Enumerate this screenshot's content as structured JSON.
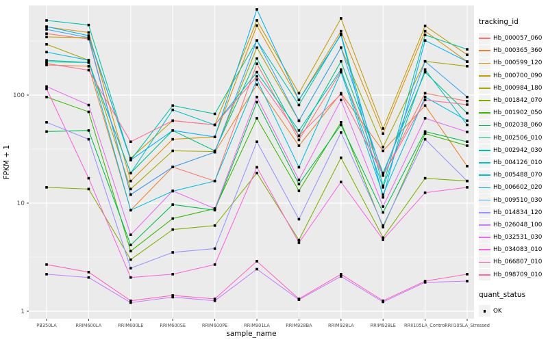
{
  "chart_data": {
    "type": "line",
    "title": "",
    "xlabel": "sample_name",
    "ylabel": "FPKM + 1",
    "y_scale": "log10",
    "y_ticks": [
      1,
      10,
      100
    ],
    "y_minor_ticks": [
      3.162,
      31.62,
      316.2
    ],
    "ylim": [
      0.86,
      660
    ],
    "grid": "on",
    "legend_position": "right",
    "panel_bg": "#EBEBEB",
    "grid_color": "#FFFFFF",
    "point_color": "#000000",
    "axis_text_color": "#4D4D4D",
    "legend_title": "tracking_id",
    "point_legend": {
      "title": "quant_status",
      "items": [
        "OK"
      ]
    },
    "x_categories": [
      "PB350LA",
      "RRIM600LA",
      "RRIM600LE",
      "RRIM600SE",
      "RRIM600PE",
      "RRIM901LA",
      "RRIM928BA",
      "RRIM928LA",
      "RRIM928LE",
      "RRII105LA_Control",
      "RRII105LA_Stressed"
    ],
    "series": [
      {
        "name": "Hb_000057_060",
        "color": "#F8766D",
        "values": [
          370,
          330,
          12,
          21.6,
          16,
          195,
          38.5,
          166,
          18,
          104,
          88
        ]
      },
      {
        "name": "Hb_000365_360",
        "color": "#EA8331",
        "values": [
          190,
          185,
          8.6,
          21.6,
          29.6,
          125,
          34,
          104,
          30.5,
          80,
          22
        ]
      },
      {
        "name": "Hb_000599_120",
        "color": "#D89000",
        "values": [
          427,
          380,
          16,
          39,
          41,
          440,
          90,
          390,
          44,
          390,
          204
        ]
      },
      {
        "name": "Hb_000700_090",
        "color": "#C09B00",
        "values": [
          345,
          340,
          26,
          58,
          53,
          490,
          104,
          512,
          49,
          437,
          236
        ]
      },
      {
        "name": "Hb_000984_180",
        "color": "#A3A500",
        "values": [
          295,
          210,
          13.5,
          30.5,
          30,
          275,
          58,
          275,
          33,
          205,
          185
        ]
      },
      {
        "name": "Hb_001842_070",
        "color": "#7CAE00",
        "values": [
          14,
          13.5,
          3.0,
          5.7,
          6.2,
          19,
          4.55,
          26.3,
          4.8,
          17,
          16
        ]
      },
      {
        "name": "Hb_001902_050",
        "color": "#39B600",
        "values": [
          96,
          70,
          3.6,
          7.2,
          8.9,
          61,
          13,
          56,
          6.0,
          44,
          34
        ]
      },
      {
        "name": "Hb_002038_060",
        "color": "#00BB4E",
        "values": [
          46,
          47,
          4.1,
          9.7,
          8.6,
          86,
          15,
          53,
          8.2,
          46,
          37
        ]
      },
      {
        "name": "Hb_002506_010",
        "color": "#00BF7D",
        "values": [
          203,
          200,
          19,
          47,
          30.5,
          218,
          42,
          205,
          19,
          163,
          68
        ]
      },
      {
        "name": "Hb_002942_030",
        "color": "#00C1A3",
        "values": [
          490,
          445,
          25,
          80,
          67,
          320,
          81,
          368,
          14.5,
          360,
          265
        ]
      },
      {
        "name": "Hb_004126_010",
        "color": "#00BFC4",
        "values": [
          210,
          200,
          19,
          73,
          53,
          163,
          47,
          172,
          14,
          172,
          53
        ]
      },
      {
        "name": "Hb_005488_070",
        "color": "#00BAE0",
        "values": [
          250,
          210,
          8.6,
          12.9,
          16,
          139,
          21.5,
          163,
          12,
          96,
          58
        ]
      },
      {
        "name": "Hb_006602_020",
        "color": "#00B0F6",
        "values": [
          430,
          355,
          25,
          47,
          41,
          620,
          90,
          360,
          11.3,
          320,
          204
        ]
      },
      {
        "name": "Hb_009510_030",
        "color": "#35A2FF",
        "values": [
          405,
          340,
          12,
          21.6,
          29.6,
          320,
          58,
          275,
          18,
          205,
          96
        ]
      },
      {
        "name": "Hb_014834_120",
        "color": "#9590FF",
        "values": [
          56,
          39,
          2.5,
          3.5,
          3.8,
          37,
          7.1,
          45,
          6.2,
          39,
          16
        ]
      },
      {
        "name": "Hb_026048_100",
        "color": "#C77CFF",
        "values": [
          2.2,
          2.05,
          1.2,
          1.35,
          1.25,
          2.45,
          1.28,
          2.1,
          1.22,
          1.85,
          1.9
        ]
      },
      {
        "name": "Hb_032531_030",
        "color": "#E76BF3",
        "values": [
          120,
          81,
          5.1,
          13,
          8.9,
          96,
          16.4,
          90,
          9.3,
          61,
          45.6
        ]
      },
      {
        "name": "Hb_034083_010",
        "color": "#FA62DB",
        "values": [
          114,
          17,
          2.05,
          2.2,
          2.7,
          21.5,
          4.3,
          15.7,
          4.6,
          12.5,
          14
        ]
      },
      {
        "name": "Hb_066807_010",
        "color": "#FF62BC",
        "values": [
          2.7,
          2.3,
          1.25,
          1.4,
          1.3,
          2.9,
          1.3,
          2.2,
          1.25,
          1.9,
          2.2
        ]
      },
      {
        "name": "Hb_098709_010",
        "color": "#FF6A98",
        "values": [
          196,
          170,
          37,
          58,
          53,
          149,
          42,
          102,
          18.1,
          90,
          81.5
        ]
      }
    ]
  }
}
